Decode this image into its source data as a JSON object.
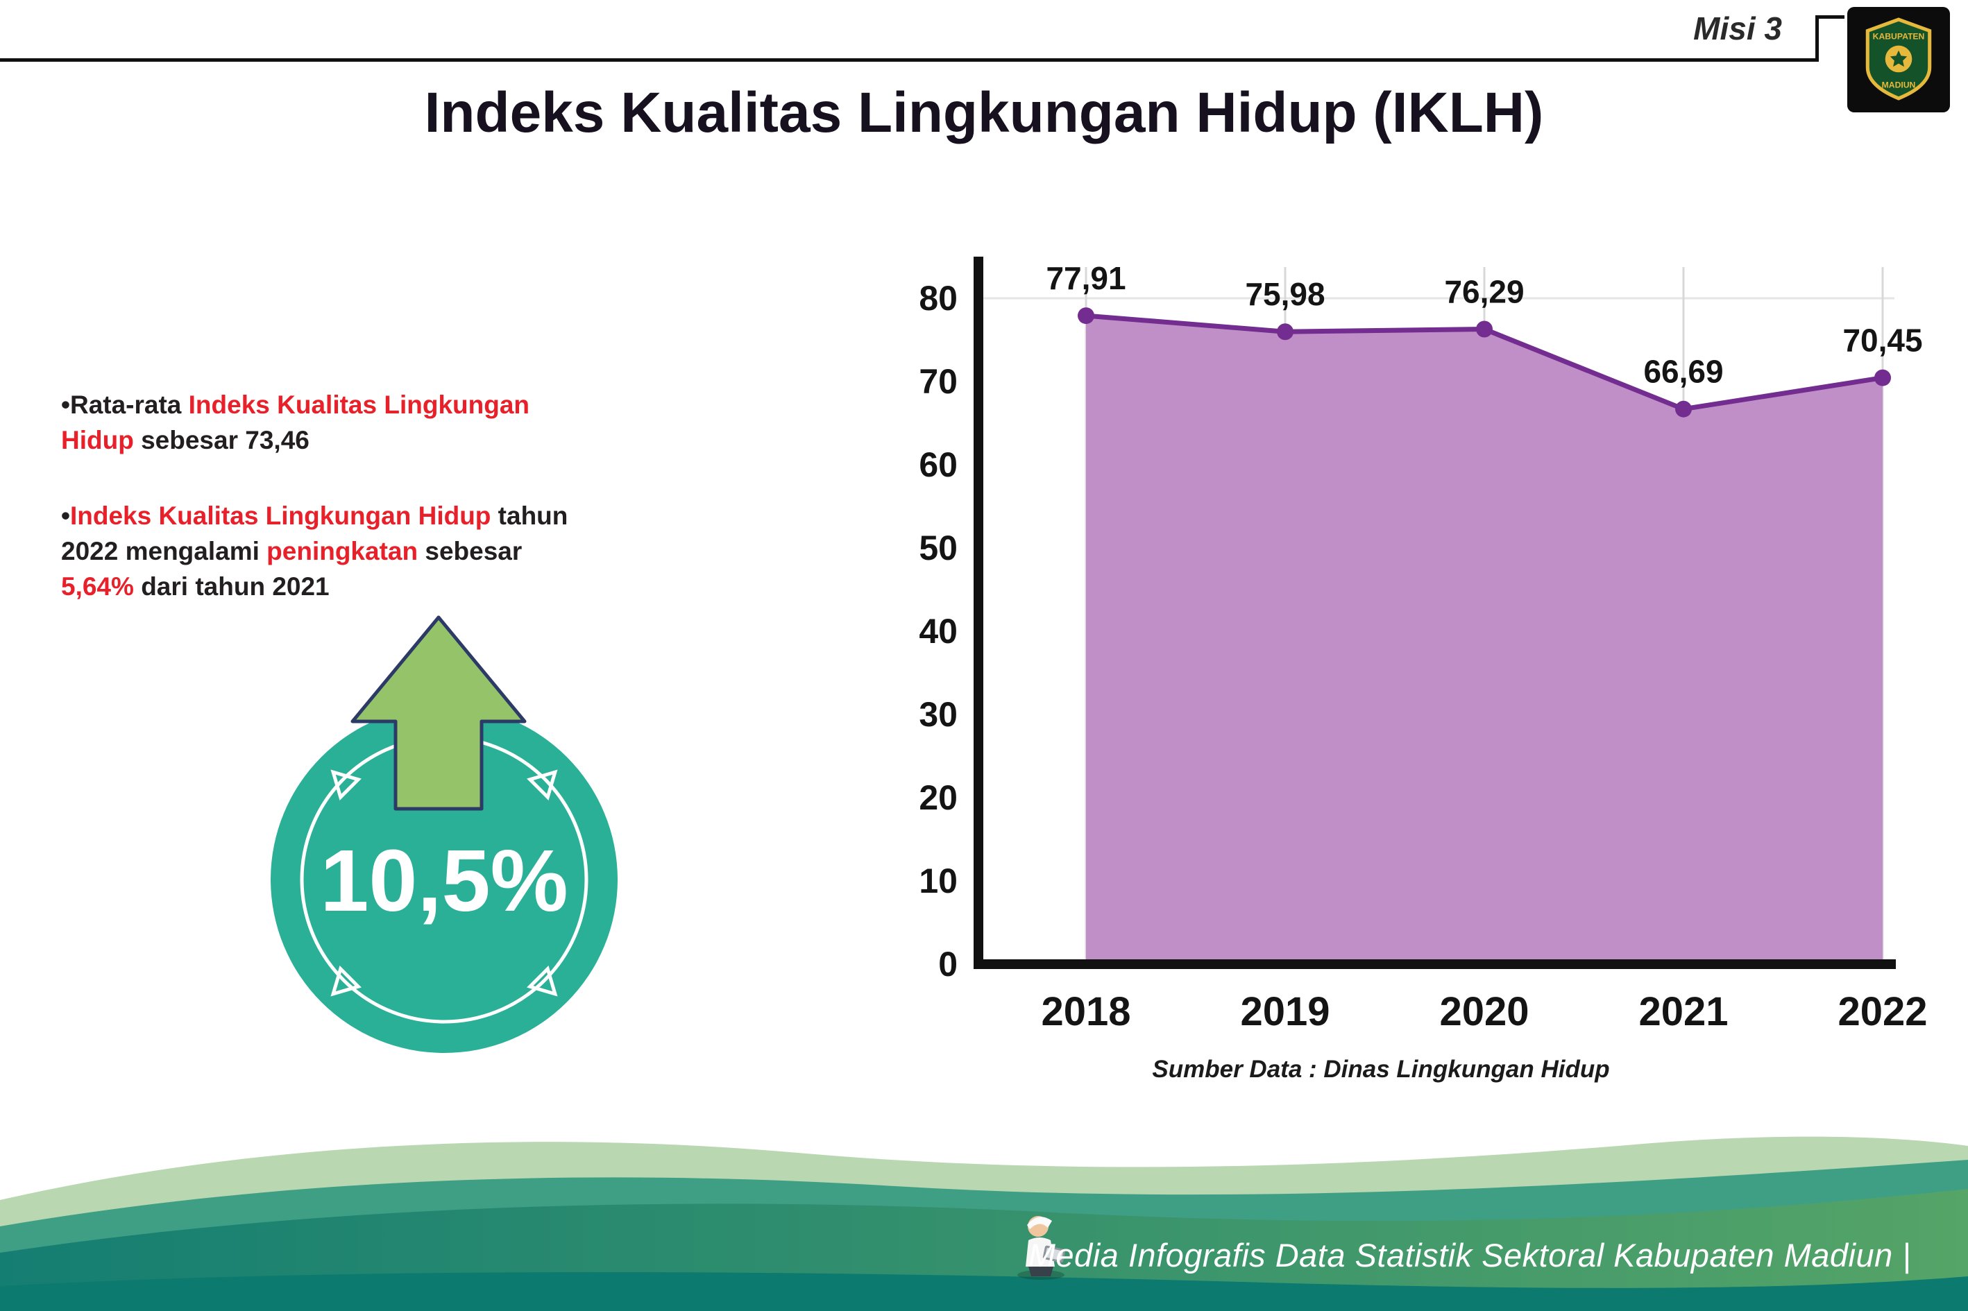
{
  "page": {
    "misi_label": "Misi 3",
    "title": "Indeks Kualitas Lingkungan Hidup (IKLH)"
  },
  "logo": {
    "name": "Lambang Kabupaten Madiun",
    "text_top": "KABUPATEN",
    "text_bottom": "MADIUN"
  },
  "colors": {
    "highlight_red": "#e8202a",
    "text_dark": "#231f20",
    "badge_teal": "#2bb098",
    "arrow_green": "#95c36a"
  },
  "bullet_char": "•",
  "bullets": [
    {
      "segments": [
        {
          "text": "Rata-rata ",
          "color": "dark"
        },
        {
          "text": "Indeks Kualitas Lingkungan Hidup",
          "color": "red"
        },
        {
          "text": " sebesar 73,46",
          "color": "dark"
        }
      ]
    },
    {
      "segments": [
        {
          "text": "Indeks Kualitas Lingkungan Hidup",
          "color": "red"
        },
        {
          "text": " tahun 2022 mengalami ",
          "color": "dark"
        },
        {
          "text": "peningkatan",
          "color": "red"
        },
        {
          "text": " sebesar ",
          "color": "dark"
        },
        {
          "text": "5,64%",
          "color": "red"
        },
        {
          "text": " dari tahun 2021",
          "color": "dark"
        }
      ]
    }
  ],
  "badge": {
    "value": "10,5%"
  },
  "chart_data": {
    "type": "area",
    "categories": [
      "2018",
      "2019",
      "2020",
      "2021",
      "2022"
    ],
    "values": [
      77.91,
      75.98,
      76.29,
      66.69,
      70.45
    ],
    "value_labels": [
      "77,91",
      "75,98",
      "76,29",
      "66,69",
      "70,45"
    ],
    "title": "",
    "xlabel": "",
    "ylabel": "",
    "ylim": [
      0,
      80
    ],
    "yticks": [
      0,
      10,
      20,
      30,
      40,
      50,
      60,
      70,
      80
    ],
    "grid": "vertical",
    "legend": "none",
    "fill_color": "#c18fc7",
    "line_color": "#732c8f",
    "source_note": "Sumber Data : Dinas Lingkungan Hidup"
  },
  "footer": {
    "credit": "Media Infografis Data Statistik Sektoral Kabupaten Madiun |"
  }
}
